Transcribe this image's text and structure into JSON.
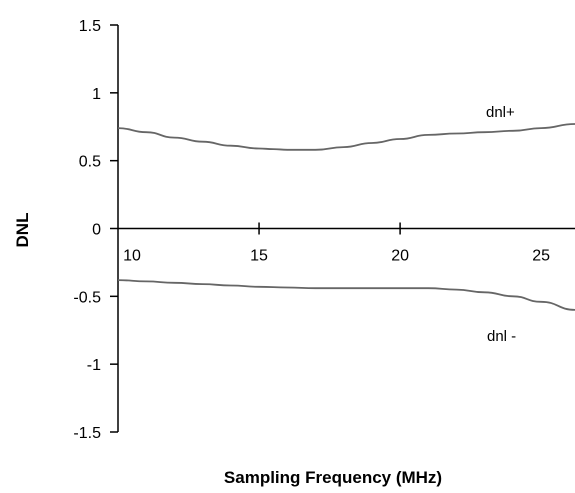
{
  "chart_data": {
    "type": "line",
    "title": "",
    "xlabel": "Sampling Frequency (MHz)",
    "ylabel": "DNL",
    "xlim": [
      10,
      26.2
    ],
    "ylim": [
      -1.5,
      1.5
    ],
    "x_ticks": [
      {
        "value": 10,
        "label": "10"
      },
      {
        "value": 15,
        "label": "15"
      },
      {
        "value": 20,
        "label": "20"
      },
      {
        "value": 25,
        "label": "25"
      }
    ],
    "x_tick_marks": [
      15,
      20
    ],
    "y_ticks": [
      {
        "value": 1.5,
        "label": "1.5"
      },
      {
        "value": 1,
        "label": "1"
      },
      {
        "value": 0.5,
        "label": "0.5"
      },
      {
        "value": 0,
        "label": "0"
      },
      {
        "value": -0.5,
        "label": "-0.5"
      },
      {
        "value": -1,
        "label": "-1"
      },
      {
        "value": -1.5,
        "label": "-1.5"
      }
    ],
    "grid": false,
    "series": [
      {
        "name": "dnl+",
        "color": "#666666",
        "x": [
          10,
          11,
          12,
          13,
          14,
          15,
          15.5,
          16,
          16.5,
          17,
          18,
          19,
          20,
          21,
          22,
          23,
          24,
          25,
          26.2
        ],
        "y": [
          0.74,
          0.71,
          0.67,
          0.64,
          0.61,
          0.59,
          0.585,
          0.58,
          0.58,
          0.58,
          0.6,
          0.63,
          0.66,
          0.69,
          0.7,
          0.71,
          0.72,
          0.74,
          0.77
        ]
      },
      {
        "name": "dnl -",
        "color": "#666666",
        "x": [
          10,
          11,
          12,
          13,
          14,
          15,
          16,
          17,
          18,
          19,
          20,
          21,
          22,
          23,
          24,
          25,
          26.2
        ],
        "y": [
          -0.38,
          -0.39,
          -0.4,
          -0.41,
          -0.42,
          -0.43,
          -0.435,
          -0.44,
          -0.44,
          -0.44,
          -0.44,
          -0.44,
          -0.45,
          -0.47,
          -0.5,
          -0.54,
          -0.6
        ]
      }
    ]
  }
}
